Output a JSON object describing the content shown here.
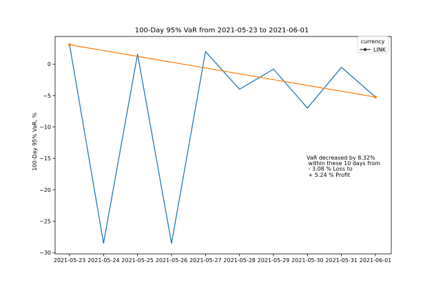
{
  "chart_data": {
    "type": "line",
    "title": "100-Day 95% VaR from 2021-05-23 to 2021-06-01",
    "xlabel": "",
    "ylabel": "100-Day 95% VaR, %",
    "categories": [
      "2021-05-23",
      "2021-05-24",
      "2021-05-25",
      "2021-05-26",
      "2021-05-27",
      "2021-05-28",
      "2021-05-29",
      "2021-05-30",
      "2021-05-31",
      "2021-06-01"
    ],
    "series": [
      {
        "name": "LINK",
        "color": "#1f77b4",
        "values": [
          3.08,
          -28.5,
          1.6,
          -28.5,
          2.0,
          -4.0,
          -0.8,
          -7.0,
          -0.5,
          -5.24
        ]
      }
    ],
    "trend": {
      "color": "#ff7f0e",
      "start": 3.08,
      "end": -5.24
    },
    "ylim": [
      -30.2,
      4.4
    ],
    "yticks": [
      0,
      -5,
      -10,
      -15,
      -20,
      -25,
      -30
    ],
    "grid": false,
    "legend": {
      "title": "currency",
      "position": "top-right",
      "entries": [
        "LINK"
      ]
    },
    "annotation": {
      "lines": [
        "VaR decreased by 8.32%",
        " within these 10 days from",
        " - 3.08 % Loss to",
        " + 5.24 % Profit"
      ]
    }
  }
}
